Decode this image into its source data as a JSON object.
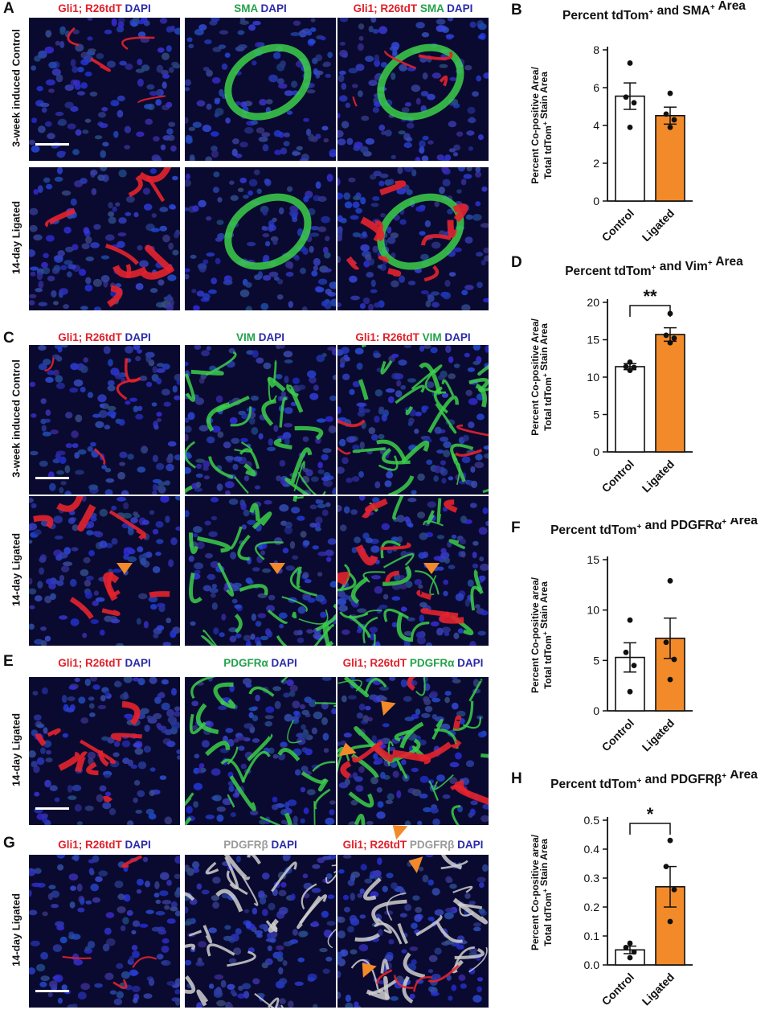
{
  "panel_letters": [
    "A",
    "B",
    "C",
    "D",
    "E",
    "F",
    "G",
    "H"
  ],
  "A": {
    "labels": [
      [
        {
          "t": "Gli1; R26tdT",
          "c": "#e0202a"
        },
        {
          "t": " DAPI",
          "c": "#2a2aa8"
        }
      ],
      [
        {
          "t": "SMA",
          "c": "#22a24a"
        },
        {
          "t": " DAPI",
          "c": "#2a2aa8"
        }
      ],
      [
        {
          "t": "Gli1; R26tdT",
          "c": "#e0202a"
        },
        {
          "t": " SMA",
          "c": "#22a24a"
        },
        {
          "t": " DAPI",
          "c": "#2a2aa8"
        }
      ]
    ],
    "rows": [
      "3-week induced Control",
      "14-day Ligated"
    ]
  },
  "C": {
    "labels": [
      [
        {
          "t": "Gli1; R26tdT",
          "c": "#e0202a"
        },
        {
          "t": " DAPI",
          "c": "#2a2aa8"
        }
      ],
      [
        {
          "t": "VIM",
          "c": "#22a24a"
        },
        {
          "t": " DAPI",
          "c": "#2a2aa8"
        }
      ],
      [
        {
          "t": "Gli1: R26tdT",
          "c": "#e0202a"
        },
        {
          "t": " VIM",
          "c": "#22a24a"
        },
        {
          "t": " DAPI",
          "c": "#2a2aa8"
        }
      ]
    ],
    "rows": [
      "3-week induced Control",
      "14-day Ligated"
    ]
  },
  "E": {
    "labels": [
      [
        {
          "t": "Gli1; R26tdT",
          "c": "#e0202a"
        },
        {
          "t": " DAPI",
          "c": "#2a2aa8"
        }
      ],
      [
        {
          "t": "PDGFRα",
          "c": "#22a24a"
        },
        {
          "t": " DAPI",
          "c": "#2a2aa8"
        }
      ],
      [
        {
          "t": "Gli1; R26tdT",
          "c": "#e0202a"
        },
        {
          "t": " PDGFRα",
          "c": "#22a24a"
        },
        {
          "t": " DAPI",
          "c": "#2a2aa8"
        }
      ]
    ],
    "rows": [
      "14-day Ligated"
    ]
  },
  "G": {
    "labels": [
      [
        {
          "t": "Gli1; R26tdT",
          "c": "#e0202a"
        },
        {
          "t": " DAPI",
          "c": "#2a2aa8"
        }
      ],
      [
        {
          "t": "PDGFRβ",
          "c": "#9a9a9a"
        },
        {
          "t": " DAPI",
          "c": "#2a2aa8"
        }
      ],
      [
        {
          "t": "Gli1; R26tdT",
          "c": "#e0202a"
        },
        {
          "t": " PDGFRβ",
          "c": "#9a9a9a"
        },
        {
          "t": " DAPI",
          "c": "#2a2aa8"
        }
      ]
    ],
    "rows": [
      "14-day Ligated"
    ]
  },
  "colors": {
    "control": "#ffffff",
    "ligated": "#f28a2a",
    "arrowhead": "#f28a2a"
  },
  "chart_data": [
    {
      "panel": "B",
      "type": "bar",
      "title": "Percent tdTom+ and SMA+ Area",
      "ylabel_line1": "Percent Co-positive Area/",
      "ylabel_line2": "Total tdTom+ Stain Area",
      "categories": [
        "Control",
        "Ligated"
      ],
      "values": [
        5.55,
        4.52
      ],
      "sem": [
        0.7,
        0.45
      ],
      "points": [
        [
          7.3,
          5.5,
          5.2,
          3.9
        ],
        [
          5.7,
          4.6,
          4.3,
          3.9
        ]
      ],
      "ylim": [
        0,
        8
      ],
      "yticks": [
        "0",
        "2",
        "4",
        "6",
        "8"
      ],
      "significance": ""
    },
    {
      "panel": "D",
      "type": "bar",
      "title": "Percent tdTom+ and Vim+ Area",
      "ylabel_line1": "Percent Co-positive Area/",
      "ylabel_line2": "Total tdTom+ Stain Area",
      "categories": [
        "Control",
        "Ligated"
      ],
      "values": [
        11.4,
        15.7
      ],
      "sem": [
        0.4,
        0.9
      ],
      "points": [
        [
          12.0,
          11.4,
          11.3,
          10.9
        ],
        [
          18.5,
          15.6,
          15.2,
          14.6
        ]
      ],
      "ylim": [
        0,
        20
      ],
      "yticks": [
        "0",
        "5",
        "10",
        "15",
        "20"
      ],
      "significance": "**"
    },
    {
      "panel": "F",
      "type": "bar",
      "title": "Percent tdTom+ and PDGFRα+ Area",
      "ylabel_line1": "Percent Co-positive area/",
      "ylabel_line2": "Total tdTom+ Stain Area",
      "categories": [
        "Control",
        "Ligated"
      ],
      "values": [
        5.3,
        7.2
      ],
      "sem": [
        1.45,
        2.0
      ],
      "points": [
        [
          9.0,
          5.8,
          4.5,
          1.9
        ],
        [
          12.9,
          6.8,
          5.1,
          3.1
        ]
      ],
      "ylim": [
        0,
        15
      ],
      "yticks": [
        "0",
        "5",
        "10",
        "15"
      ],
      "significance": ""
    },
    {
      "panel": "H",
      "type": "bar",
      "title": "Percent tdTom+ and PDGFRβ+ Area",
      "ylabel_line1": "Percent Co-positive area/",
      "ylabel_line2": "Total tdTom+ Stain Area",
      "categories": [
        "Control",
        "Ligated"
      ],
      "values": [
        0.052,
        0.27
      ],
      "sem": [
        0.013,
        0.07
      ],
      "points": [
        [
          0.075,
          0.06,
          0.045,
          0.025
        ],
        [
          0.43,
          0.34,
          0.26,
          0.15
        ]
      ],
      "ylim": [
        0,
        0.5
      ],
      "yticks": [
        "0.0",
        "0.1",
        "0.2",
        "0.3",
        "0.4",
        "0.5"
      ],
      "significance": "*"
    }
  ]
}
